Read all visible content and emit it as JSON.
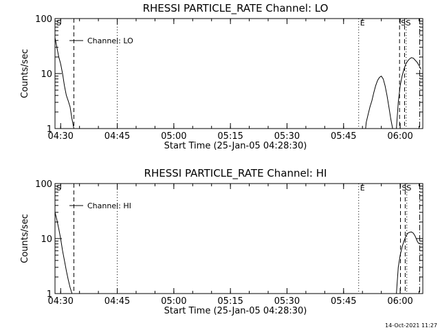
{
  "footer_timestamp": "14-Oct-2021 11:27",
  "chart_data": [
    {
      "type": "line",
      "title": "RHESSI PARTICLE_RATE Channel: LO",
      "xlabel": "Start Time (25-Jan-05 04:28:30)",
      "ylabel": "Counts/sec",
      "yscale": "log",
      "ylim": [
        1,
        100
      ],
      "xlim": [
        "04:28:30",
        "06:06:00"
      ],
      "x_ticks": [
        "04:30",
        "04:45",
        "05:00",
        "05:15",
        "05:30",
        "05:45",
        "06:00"
      ],
      "y_ticks": [
        "1",
        "10",
        "100"
      ],
      "legend": "top-left",
      "grid": false,
      "series": [
        {
          "name": "Channel: LO",
          "segments": [
            {
              "x": [
                "04:28:30",
                "04:29:00",
                "04:29:30",
                "04:30:00",
                "04:30:30",
                "04:31:00",
                "04:31:30",
                "04:32:00",
                "04:32:30",
                "04:33:00",
                "04:33:30"
              ],
              "y": [
                45,
                30,
                20,
                15,
                10,
                6,
                4,
                3.2,
                2.5,
                1.5,
                1
              ]
            },
            {
              "x": [
                "05:50:50",
                "05:51:00",
                "05:51:30",
                "05:52:00",
                "05:52:30",
                "05:53:00",
                "05:53:30",
                "05:54:00",
                "05:54:30",
                "05:55:00",
                "05:55:30",
                "05:56:00",
                "05:56:30",
                "05:57:00",
                "05:57:30",
                "05:58:00"
              ],
              "y": [
                1,
                1.3,
                1.8,
                2.5,
                3.2,
                4.5,
                6,
                7.5,
                8.5,
                9,
                8,
                6,
                4,
                2.5,
                1.5,
                1
              ]
            },
            {
              "x": [
                "05:59:00",
                "05:59:30",
                "06:00:00",
                "06:00:30",
                "06:01:00",
                "06:01:30",
                "06:02:00",
                "06:02:30",
                "06:03:00",
                "06:03:30",
                "06:04:00",
                "06:04:30",
                "06:05:00",
                "06:05:30"
              ],
              "y": [
                1,
                3,
                6,
                9,
                12,
                15,
                17,
                18.5,
                19.5,
                19,
                17.5,
                16,
                14,
                12
              ]
            }
          ]
        }
      ],
      "markers": [
        {
          "label": "S",
          "time": "04:28:30",
          "style": "dashed"
        },
        {
          "label": "",
          "time": "04:33:30",
          "style": "dashed"
        },
        {
          "label": "",
          "time": "04:45:00",
          "style": "dotted"
        },
        {
          "label": "E",
          "time": "05:49:00",
          "style": "dotted"
        },
        {
          "label": "S",
          "time": "05:59:50",
          "style": "dashed"
        },
        {
          "label": "S",
          "time": "06:01:10",
          "style": "dashed"
        },
        {
          "label": "",
          "time": "06:01:35",
          "style": "dotted"
        },
        {
          "label": "",
          "time": "06:05:10",
          "style": "dashdot"
        }
      ]
    },
    {
      "type": "line",
      "title": "RHESSI PARTICLE_RATE Channel: HI",
      "xlabel": "Start Time (25-Jan-05 04:28:30)",
      "ylabel": "Counts/sec",
      "yscale": "log",
      "ylim": [
        1,
        100
      ],
      "xlim": [
        "04:28:30",
        "06:06:00"
      ],
      "x_ticks": [
        "04:30",
        "04:45",
        "05:00",
        "05:15",
        "05:30",
        "05:45",
        "06:00"
      ],
      "y_ticks": [
        "1",
        "10",
        "100"
      ],
      "legend": "top-left",
      "grid": false,
      "series": [
        {
          "name": "Channel: HI",
          "segments": [
            {
              "x": [
                "04:28:30",
                "04:29:00",
                "04:29:30",
                "04:30:00",
                "04:30:30",
                "04:31:00",
                "04:31:30",
                "04:32:00",
                "04:32:30",
                "04:33:00"
              ],
              "y": [
                30,
                22,
                15,
                10,
                6,
                4,
                2.6,
                1.8,
                1.3,
                1
              ]
            },
            {
              "x": [
                "05:59:00",
                "05:59:30",
                "06:00:00",
                "06:00:30",
                "06:01:00",
                "06:01:30",
                "06:02:00",
                "06:02:30",
                "06:03:00",
                "06:03:30",
                "06:04:00",
                "06:04:30",
                "06:05:00"
              ],
              "y": [
                1,
                3,
                5,
                7,
                9,
                11,
                12.5,
                13,
                13.2,
                12.5,
                11,
                9,
                8
              ]
            }
          ]
        }
      ],
      "markers": [
        {
          "label": "S",
          "time": "04:28:30",
          "style": "dashed"
        },
        {
          "label": "",
          "time": "04:33:30",
          "style": "dashed"
        },
        {
          "label": "",
          "time": "04:45:00",
          "style": "dotted"
        },
        {
          "label": "E",
          "time": "05:49:00",
          "style": "dotted"
        },
        {
          "label": "S",
          "time": "06:00:05",
          "style": "dashed"
        },
        {
          "label": "S",
          "time": "06:01:20",
          "style": "dashed"
        },
        {
          "label": "",
          "time": "06:01:45",
          "style": "dotted"
        },
        {
          "label": "",
          "time": "06:05:10",
          "style": "dashdot"
        }
      ]
    }
  ]
}
